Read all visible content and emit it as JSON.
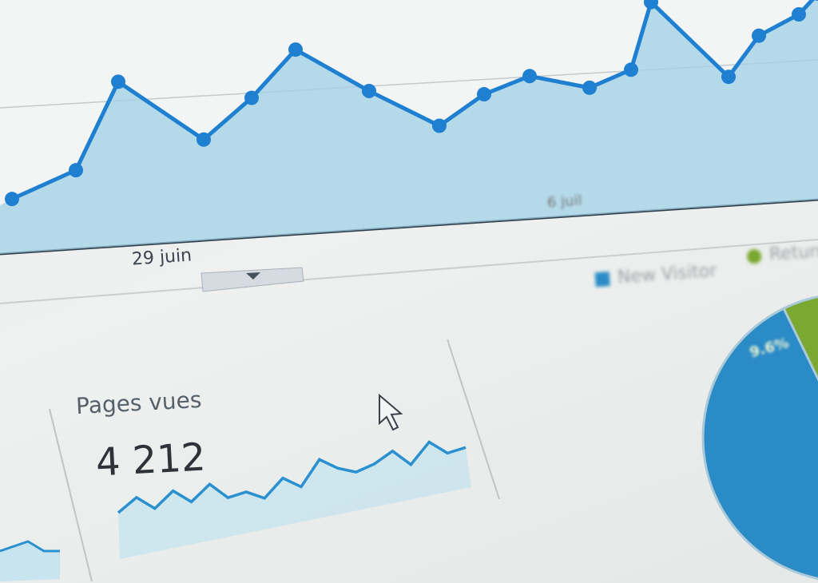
{
  "chart_data": [
    {
      "type": "area",
      "x_tick_labels": [
        "29 juin",
        "6 juil"
      ],
      "values": [
        12,
        20,
        46,
        28,
        40,
        54,
        41,
        30,
        39,
        44,
        40,
        45,
        65,
        42,
        54,
        60,
        66
      ],
      "color": "#1f7fd0",
      "fill": "#9fd0e6",
      "grid": true
    },
    {
      "type": "area",
      "title": "Pages vues",
      "value_label": "4 212",
      "values": [
        10,
        16,
        11,
        18,
        13,
        20,
        14,
        16,
        13,
        21,
        17,
        28,
        24,
        22,
        25,
        30,
        24,
        33,
        28,
        30
      ],
      "color": "#2a90d0",
      "fill": "#c7e4ef"
    },
    {
      "type": "pie",
      "legend": [
        {
          "name": "New Visitor",
          "color": "#2a8bc7"
        },
        {
          "name": "Returni",
          "color": "#7aa830"
        }
      ],
      "slices": [
        {
          "name": "New Visitor",
          "color": "#2a8bc7"
        },
        {
          "name": "Returni",
          "color": "#7aa830",
          "label": "9.6%"
        },
        {
          "name": "",
          "color": "#3d7fae"
        }
      ],
      "legend_position": "top"
    }
  ]
}
